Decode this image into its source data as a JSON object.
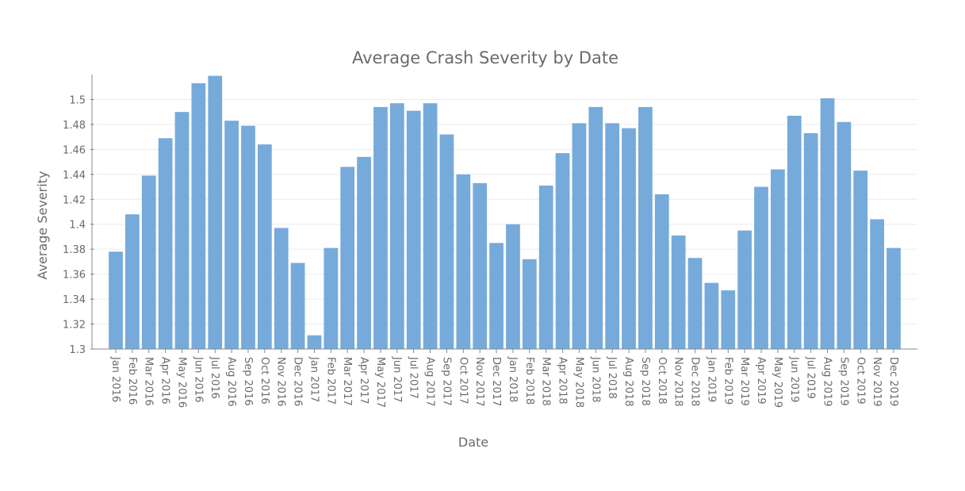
{
  "chart_data": {
    "type": "bar",
    "title": "Average Crash Severity by Date",
    "xlabel": "Date",
    "ylabel": "Average Severity",
    "ylim": [
      1.3,
      1.52
    ],
    "yticks": [
      1.3,
      1.32,
      1.34,
      1.36,
      1.38,
      1.4,
      1.42,
      1.44,
      1.46,
      1.48,
      1.5
    ],
    "grid": true,
    "bar_color": "#76aadb",
    "categories": [
      "Jan 2016",
      "Feb 2016",
      "Mar 2016",
      "Apr 2016",
      "May 2016",
      "Jun 2016",
      "Jul 2016",
      "Aug 2016",
      "Sep 2016",
      "Oct 2016",
      "Nov 2016",
      "Dec 2016",
      "Jan 2017",
      "Feb 2017",
      "Mar 2017",
      "Apr 2017",
      "May 2017",
      "Jun 2017",
      "Jul 2017",
      "Aug 2017",
      "Sep 2017",
      "Oct 2017",
      "Nov 2017",
      "Dec 2017",
      "Jan 2018",
      "Feb 2018",
      "Mar 2018",
      "Apr 2018",
      "May 2018",
      "Jun 2018",
      "Jul 2018",
      "Aug 2018",
      "Sep 2018",
      "Oct 2018",
      "Nov 2018",
      "Dec 2018",
      "Jan 2019",
      "Feb 2019",
      "Mar 2019",
      "Apr 2019",
      "May 2019",
      "Jun 2019",
      "Jul 2019",
      "Aug 2019",
      "Sep 2019",
      "Oct 2019",
      "Nov 2019",
      "Dec 2019"
    ],
    "values": [
      1.378,
      1.408,
      1.439,
      1.469,
      1.49,
      1.513,
      1.519,
      1.483,
      1.479,
      1.464,
      1.397,
      1.369,
      1.311,
      1.381,
      1.446,
      1.454,
      1.494,
      1.497,
      1.491,
      1.497,
      1.472,
      1.44,
      1.433,
      1.385,
      1.4,
      1.372,
      1.431,
      1.457,
      1.481,
      1.494,
      1.481,
      1.477,
      1.494,
      1.424,
      1.391,
      1.373,
      1.353,
      1.347,
      1.395,
      1.43,
      1.444,
      1.487,
      1.473,
      1.501,
      1.482,
      1.443,
      1.404,
      1.381
    ]
  }
}
